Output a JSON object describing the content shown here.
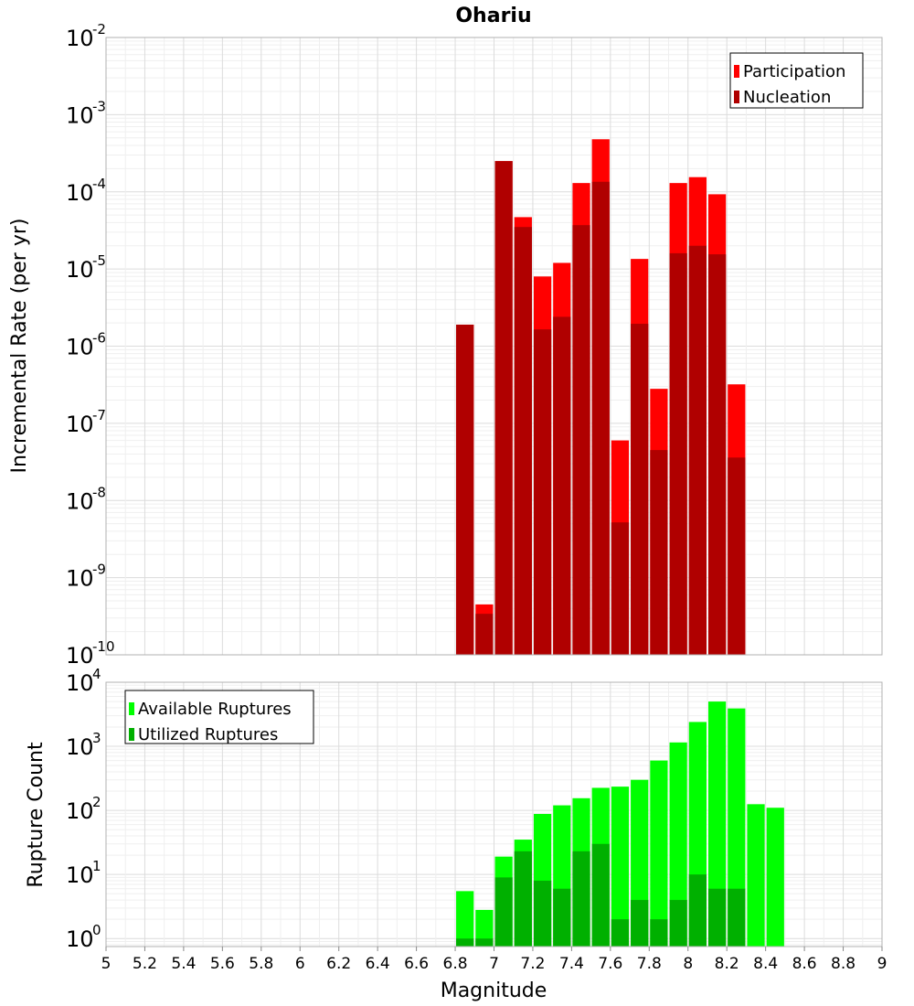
{
  "chart_data": [
    {
      "type": "bar",
      "title": "Ohariu",
      "xlabel": "",
      "ylabel": "Incremental Rate (per yr)",
      "yscale": "log",
      "ylim": [
        1e-10,
        0.01
      ],
      "xlim": [
        5,
        9
      ],
      "y_tick_exponents": [
        -10,
        -9,
        -8,
        -7,
        -6,
        -5,
        -4,
        -3,
        -2
      ],
      "grid": true,
      "legend_position": "top-right",
      "bar_width": 0.1,
      "x": [
        6.85,
        6.95,
        7.05,
        7.15,
        7.25,
        7.35,
        7.45,
        7.55,
        7.65,
        7.75,
        7.85,
        7.95,
        8.05,
        8.15,
        8.25
      ],
      "series": [
        {
          "name": "Participation",
          "color": "#ff0000",
          "values": [
            1.9e-06,
            4.5e-10,
            0.00025,
            4.7e-05,
            8e-06,
            1.2e-05,
            0.00013,
            0.00048,
            6e-08,
            1.35e-05,
            2.8e-07,
            0.00013,
            0.000155,
            9.3e-05,
            3.2e-07
          ]
        },
        {
          "name": "Nucleation",
          "color": "#b00000",
          "values": [
            1.9e-06,
            3.4e-10,
            0.00025,
            3.5e-05,
            1.65e-06,
            2.4e-06,
            3.7e-05,
            0.000135,
            5.2e-09,
            1.95e-06,
            4.5e-08,
            1.6e-05,
            2e-05,
            1.55e-05,
            3.6e-08
          ]
        }
      ]
    },
    {
      "type": "bar",
      "title": "",
      "xlabel": "Magnitude",
      "ylabel": "Rupture Count",
      "yscale": "log",
      "ylim": [
        0.75,
        10000.0
      ],
      "xlim": [
        5,
        9
      ],
      "y_tick_exponents": [
        0,
        1,
        2,
        3,
        4
      ],
      "x_ticks": [
        "5",
        "5.2",
        "5.4",
        "5.6",
        "5.8",
        "6",
        "6.2",
        "6.4",
        "6.6",
        "6.8",
        "7",
        "7.2",
        "7.4",
        "7.6",
        "7.8",
        "8",
        "8.2",
        "8.4",
        "8.6",
        "8.8",
        "9"
      ],
      "grid": true,
      "legend_position": "top-left",
      "bar_width": 0.1,
      "x": [
        6.85,
        6.95,
        7.05,
        7.15,
        7.25,
        7.35,
        7.45,
        7.55,
        7.65,
        7.75,
        7.85,
        7.95,
        8.05,
        8.15,
        8.25,
        8.35,
        8.45
      ],
      "series": [
        {
          "name": "Available Ruptures",
          "color": "#00ff00",
          "values": [
            5.5,
            2.8,
            19,
            35,
            88,
            120,
            155,
            225,
            235,
            300,
            600,
            1150,
            2400,
            5000,
            3900,
            125,
            110
          ]
        },
        {
          "name": "Utilized Ruptures",
          "color": "#00b000",
          "values": [
            1,
            1,
            9,
            23,
            8,
            6,
            23,
            30,
            2,
            4,
            2,
            4,
            10,
            6,
            6,
            null,
            null
          ]
        }
      ]
    }
  ]
}
